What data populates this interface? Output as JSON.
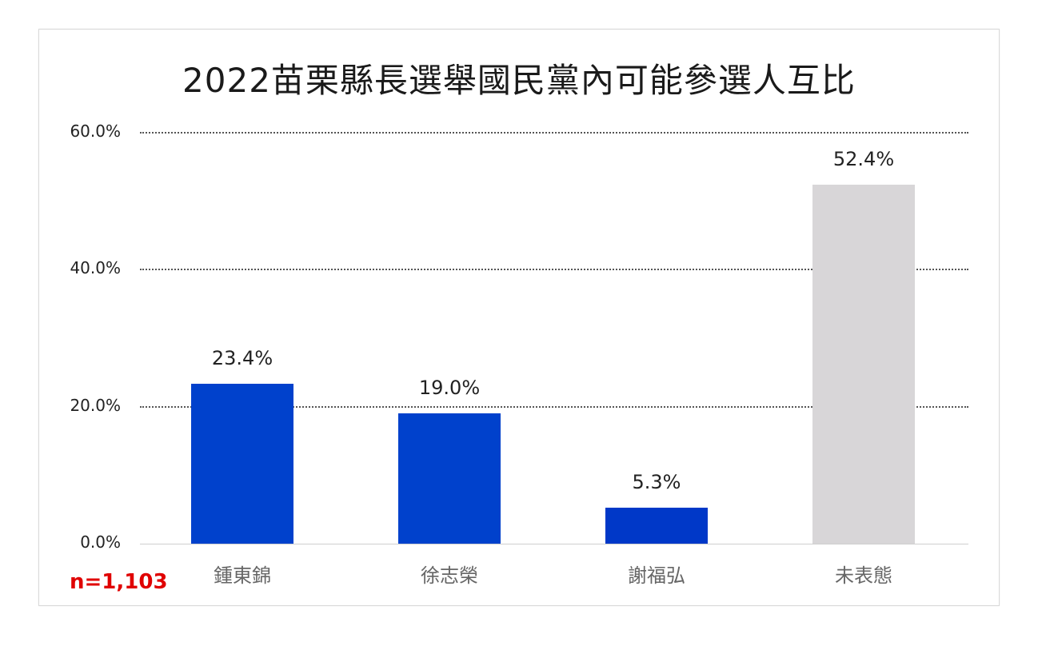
{
  "chart_data": {
    "type": "bar",
    "title": "2022苗栗縣長選舉國民黨內可能參選人互比",
    "categories": [
      "鍾東錦",
      "徐志榮",
      "謝福弘",
      "未表態"
    ],
    "values": [
      23.4,
      19.0,
      5.3,
      52.4
    ],
    "value_labels": [
      "23.4%",
      "19.0%",
      "5.3%",
      "52.4%"
    ],
    "colors": [
      "#0041cc",
      "#0041cc",
      "#0038c8",
      "#d8d6d8"
    ],
    "ylim": [
      0,
      60
    ],
    "yticks": [
      0,
      20,
      40,
      60
    ],
    "ytick_labels": [
      "0.0%",
      "20.0%",
      "40.0%",
      "60.0%"
    ],
    "grid": true,
    "legend": "none"
  },
  "note": "n=1,103"
}
